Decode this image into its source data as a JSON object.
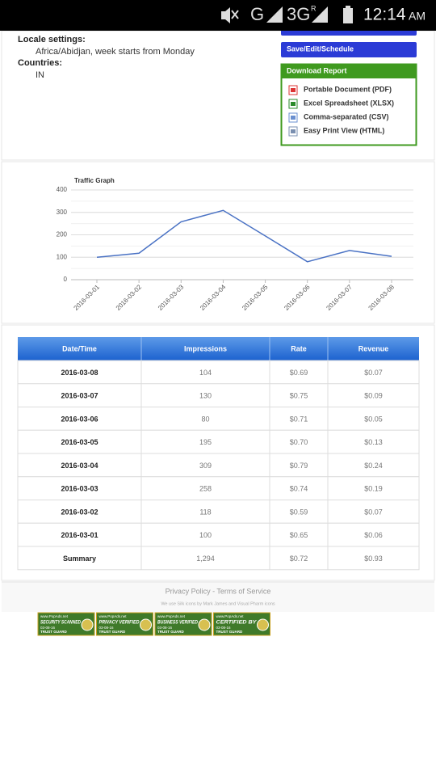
{
  "status_bar": {
    "network": "G",
    "network2": "3G",
    "roaming": "R",
    "time": "12:14",
    "ampm": "AM"
  },
  "settings": {
    "locale_label": "Locale settings:",
    "locale_value": "Africa/Abidjan, week starts from Monday",
    "countries_label": "Countries:",
    "countries_value": "IN"
  },
  "buttons": {
    "save": "Save/Edit/Schedule"
  },
  "download": {
    "title": "Download Report",
    "items": [
      "Portable Document (PDF)",
      "Excel Spreadsheet (XLSX)",
      "Comma-separated (CSV)",
      "Easy Print View (HTML)"
    ]
  },
  "chart": {
    "type": "line",
    "title": "Traffic Graph",
    "categories": [
      "2016-03-01",
      "2016-03-02",
      "2016-03-03",
      "2016-03-04",
      "2016-03-05",
      "2016-03-06",
      "2016-03-07",
      "2016-03-08"
    ],
    "values": [
      100,
      118,
      258,
      309,
      195,
      80,
      130,
      104
    ],
    "color": "#4a72c4",
    "ylim": [
      0,
      400
    ],
    "yticks": [
      0,
      100,
      200,
      300,
      400
    ],
    "grid": true
  },
  "table": {
    "header": [
      "Date/Time",
      "Impressions",
      "Rate",
      "Revenue"
    ],
    "rows": [
      [
        "2016-03-08",
        "104",
        "$0.69",
        "$0.07"
      ],
      [
        "2016-03-07",
        "130",
        "$0.75",
        "$0.09"
      ],
      [
        "2016-03-06",
        "80",
        "$0.71",
        "$0.05"
      ],
      [
        "2016-03-05",
        "195",
        "$0.70",
        "$0.13"
      ],
      [
        "2016-03-04",
        "309",
        "$0.79",
        "$0.24"
      ],
      [
        "2016-03-03",
        "258",
        "$0.74",
        "$0.19"
      ],
      [
        "2016-03-02",
        "118",
        "$0.59",
        "$0.07"
      ],
      [
        "2016-03-01",
        "100",
        "$0.65",
        "$0.06"
      ]
    ],
    "summary": [
      "Summary",
      "1,294",
      "$0.72",
      "$0.93"
    ]
  },
  "footer": {
    "links": "Privacy Policy - Terms of Service",
    "credits": "We use Silk icons by Mark James and Visual Pharm icons",
    "badges": [
      {
        "site": "www.PopAds.net",
        "label": "SECURITY SCANNED",
        "date": "03-08-16",
        "brand": "TRUST GUARD"
      },
      {
        "site": "www.PopAds.net",
        "label": "PRIVACY VERIFIED",
        "date": "03-08-16",
        "brand": "TRUST GUARD"
      },
      {
        "site": "www.PopAds.net",
        "label": "BUSINESS VERIFIED",
        "date": "03-08-16",
        "brand": "TRUST GUARD"
      },
      {
        "site": "www.PopAds.net",
        "label": "CERTIFIED BY",
        "date": "03-08-16",
        "brand": "TRUST GUARD"
      }
    ]
  }
}
